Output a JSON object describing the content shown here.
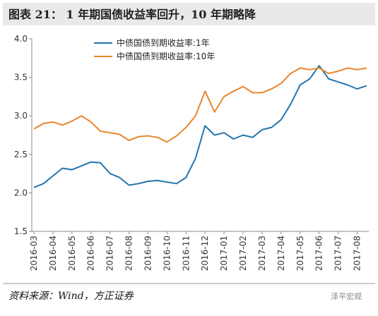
{
  "chart_data": {
    "type": "line",
    "title": "图表 21：   1 年期国债收益率回升，10 年期略降",
    "source": "资料来源：Wind，方正证券",
    "watermark": "泽平宏观",
    "categories": [
      "2016-03",
      null,
      "2016-04",
      null,
      "2016-05",
      null,
      "2016-06",
      null,
      "2016-07",
      null,
      "2016-08",
      null,
      "2016-09",
      null,
      "2016-10",
      null,
      "2016-11",
      null,
      "2016-12",
      null,
      "2017-01",
      null,
      "2017-02",
      null,
      "2017-03",
      null,
      "2017-04",
      null,
      "2017-05",
      null,
      "2017-06",
      null,
      "2017-07",
      null,
      "2017-08",
      null
    ],
    "series": [
      {
        "name": "中债国债到期收益率:1年",
        "color": "#2474ad",
        "values": [
          2.07,
          2.12,
          2.22,
          2.32,
          2.3,
          2.35,
          2.4,
          2.39,
          2.25,
          2.2,
          2.1,
          2.12,
          2.15,
          2.16,
          2.14,
          2.12,
          2.2,
          2.45,
          2.87,
          2.75,
          2.78,
          2.7,
          2.75,
          2.72,
          2.82,
          2.85,
          2.95,
          3.15,
          3.4,
          3.48,
          3.65,
          3.48,
          3.44,
          3.4,
          3.35,
          3.39
        ]
      },
      {
        "name": "中债国债到期收益率:10年",
        "color": "#e8862c",
        "values": [
          2.83,
          2.9,
          2.92,
          2.88,
          2.93,
          3.0,
          2.92,
          2.8,
          2.78,
          2.76,
          2.68,
          2.73,
          2.74,
          2.72,
          2.66,
          2.74,
          2.85,
          3.0,
          3.32,
          3.05,
          3.25,
          3.32,
          3.38,
          3.3,
          3.3,
          3.35,
          3.42,
          3.55,
          3.62,
          3.6,
          3.62,
          3.55,
          3.58,
          3.62,
          3.6,
          3.62
        ]
      }
    ],
    "ylim": [
      1.5,
      4.0
    ],
    "yticks": [
      {
        "value": 1.5,
        "label": "1.5"
      },
      {
        "value": 2,
        "label": "2.0"
      },
      2.5,
      {
        "value": 3,
        "label": "3.0"
      },
      3.5,
      {
        "value": 4,
        "label": "4.0"
      }
    ],
    "legend": "upper left"
  }
}
